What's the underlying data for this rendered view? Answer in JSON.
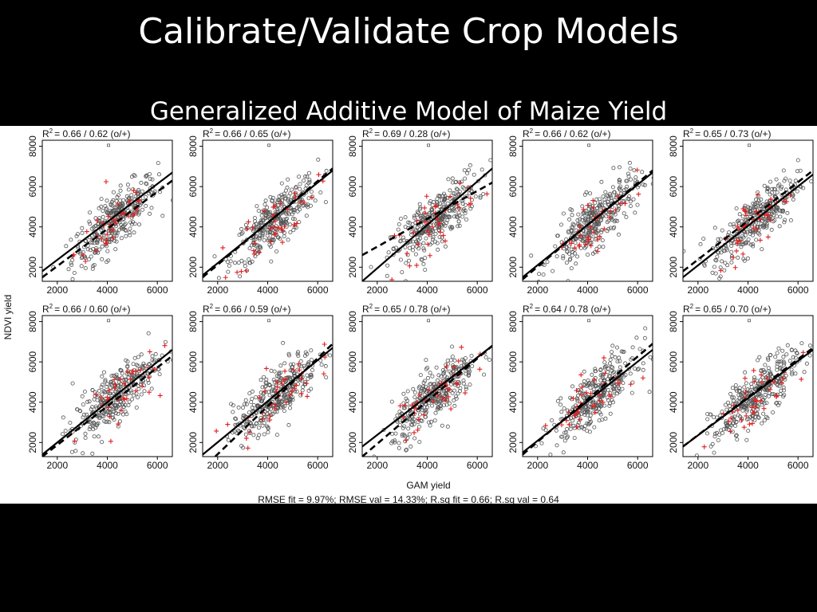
{
  "slide": {
    "title": "Calibrate/Validate Crop Models",
    "subtitle": "Generalized Additive Model of Maize Yield"
  },
  "figure": {
    "ylabel": "NDVI yield",
    "xlabel": "GAM yield",
    "footer": "RMSE fit = 9.97%; RMSE val = 14.33%; R.sq fit = 0.66; R.sq val = 0.64",
    "colors": {
      "fit_points": "#555555",
      "val_points": "#e02020",
      "lines": "#000000"
    }
  },
  "chart_data": [
    {
      "type": "scatter",
      "r2_text": "= 0.66 / 0.62 (o/+)",
      "xlim": [
        1400,
        6600
      ],
      "ylim": [
        1300,
        8300
      ],
      "xticks": [
        2000,
        4000,
        6000
      ],
      "yticks": [
        2000,
        4000,
        6000,
        8000
      ],
      "fit_line": [
        [
          1400,
          1800
        ],
        [
          6600,
          6700
        ]
      ],
      "val_line": [
        [
          1400,
          1500
        ],
        [
          6600,
          6300
        ]
      ]
    },
    {
      "type": "scatter",
      "r2_text": "= 0.66 / 0.65 (o/+)",
      "xlim": [
        1400,
        6600
      ],
      "ylim": [
        1300,
        8300
      ],
      "xticks": [
        2000,
        4000,
        6000
      ],
      "yticks": [
        2000,
        4000,
        6000,
        8000
      ],
      "fit_line": [
        [
          1400,
          1600
        ],
        [
          6600,
          6800
        ]
      ],
      "val_line": [
        [
          1400,
          1500
        ],
        [
          6600,
          6900
        ]
      ]
    },
    {
      "type": "scatter",
      "r2_text": "= 0.69 / 0.28 (o/+)",
      "xlim": [
        1400,
        6600
      ],
      "ylim": [
        1300,
        8300
      ],
      "xticks": [
        2000,
        4000,
        6000
      ],
      "yticks": [
        2000,
        4000,
        6000,
        8000
      ],
      "fit_line": [
        [
          1400,
          1300
        ],
        [
          6600,
          6900
        ]
      ],
      "val_line": [
        [
          1400,
          2600
        ],
        [
          6600,
          6200
        ]
      ]
    },
    {
      "type": "scatter",
      "r2_text": "= 0.66 / 0.62 (o/+)",
      "xlim": [
        1400,
        6600
      ],
      "ylim": [
        1300,
        8300
      ],
      "xticks": [
        2000,
        4000,
        6000
      ],
      "yticks": [
        2000,
        4000,
        6000,
        8000
      ],
      "fit_line": [
        [
          1400,
          1500
        ],
        [
          6600,
          6700
        ]
      ],
      "val_line": [
        [
          1400,
          1400
        ],
        [
          6600,
          6800
        ]
      ]
    },
    {
      "type": "scatter",
      "r2_text": "= 0.65 / 0.73 (o/+)",
      "xlim": [
        1400,
        6600
      ],
      "ylim": [
        1300,
        8300
      ],
      "xticks": [
        2000,
        4000,
        6000
      ],
      "yticks": [
        2000,
        4000,
        6000,
        8000
      ],
      "fit_line": [
        [
          1400,
          1500
        ],
        [
          6600,
          6600
        ]
      ],
      "val_line": [
        [
          1400,
          1800
        ],
        [
          6600,
          6800
        ]
      ]
    },
    {
      "type": "scatter",
      "r2_text": "= 0.66 / 0.60 (o/+)",
      "xlim": [
        1400,
        6600
      ],
      "ylim": [
        1300,
        8300
      ],
      "xticks": [
        2000,
        4000,
        6000
      ],
      "yticks": [
        2000,
        4000,
        6000,
        8000
      ],
      "fit_line": [
        [
          1400,
          1400
        ],
        [
          6600,
          6600
        ]
      ],
      "val_line": [
        [
          1400,
          1300
        ],
        [
          6600,
          6300
        ]
      ]
    },
    {
      "type": "scatter",
      "r2_text": "= 0.66 / 0.59 (o/+)",
      "xlim": [
        1400,
        6600
      ],
      "ylim": [
        1300,
        8300
      ],
      "xticks": [
        2000,
        4000,
        6000
      ],
      "yticks": [
        2000,
        4000,
        6000,
        8000
      ],
      "fit_line": [
        [
          1400,
          1400
        ],
        [
          6600,
          6700
        ]
      ],
      "val_line": [
        [
          1900,
          1300
        ],
        [
          6600,
          6900
        ]
      ]
    },
    {
      "type": "scatter",
      "r2_text": "= 0.65 / 0.78 (o/+)",
      "xlim": [
        1400,
        6600
      ],
      "ylim": [
        1300,
        8300
      ],
      "xticks": [
        2000,
        4000,
        6000
      ],
      "yticks": [
        2000,
        4000,
        6000,
        8000
      ],
      "fit_line": [
        [
          1400,
          1800
        ],
        [
          6600,
          6800
        ]
      ],
      "val_line": [
        [
          1400,
          1300
        ],
        [
          6600,
          6800
        ]
      ]
    },
    {
      "type": "scatter",
      "r2_text": "= 0.64 / 0.78 (o/+)",
      "xlim": [
        1400,
        6600
      ],
      "ylim": [
        1300,
        8300
      ],
      "xticks": [
        2000,
        4000,
        6000
      ],
      "yticks": [
        2000,
        4000,
        6000,
        8000
      ],
      "fit_line": [
        [
          1400,
          1500
        ],
        [
          6600,
          6600
        ]
      ],
      "val_line": [
        [
          1400,
          1400
        ],
        [
          6600,
          6900
        ]
      ]
    },
    {
      "type": "scatter",
      "r2_text": "= 0.65 / 0.70 (o/+)",
      "xlim": [
        1400,
        6600
      ],
      "ylim": [
        1300,
        8300
      ],
      "xticks": [
        2000,
        4000,
        6000
      ],
      "yticks": [
        2000,
        4000,
        6000,
        8000
      ],
      "fit_line": [
        [
          1400,
          1800
        ],
        [
          6600,
          6600
        ]
      ],
      "val_line": [
        [
          1400,
          1800
        ],
        [
          6600,
          6700
        ]
      ]
    }
  ]
}
